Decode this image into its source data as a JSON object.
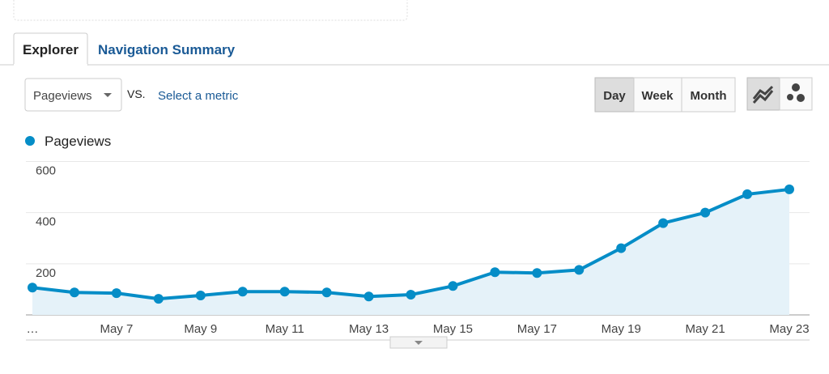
{
  "ui": {
    "tabs": [
      "Explorer",
      "Navigation Summary"
    ],
    "metric_dropdown": "Pageviews",
    "vs": "VS.",
    "select_metric": "Select a metric",
    "periods": [
      "Day",
      "Week",
      "Month"
    ]
  },
  "chart_data": {
    "type": "line",
    "categories": [
      "…",
      null,
      "May 7",
      null,
      "May 9",
      null,
      "May 11",
      null,
      "May 13",
      null,
      "May 15",
      null,
      "May 17",
      null,
      "May 19",
      null,
      "May 21",
      null,
      "May 23"
    ],
    "series": [
      {
        "name": "Pageviews",
        "color": "#058dc7",
        "values": [
          107,
          88,
          85,
          63,
          76,
          91,
          91,
          88,
          72,
          79,
          113,
          167,
          164,
          176,
          261,
          359,
          400,
          472,
          491
        ]
      }
    ],
    "ylim": [
      0,
      600
    ],
    "yticks": [
      200,
      400,
      600
    ],
    "grid": true
  }
}
